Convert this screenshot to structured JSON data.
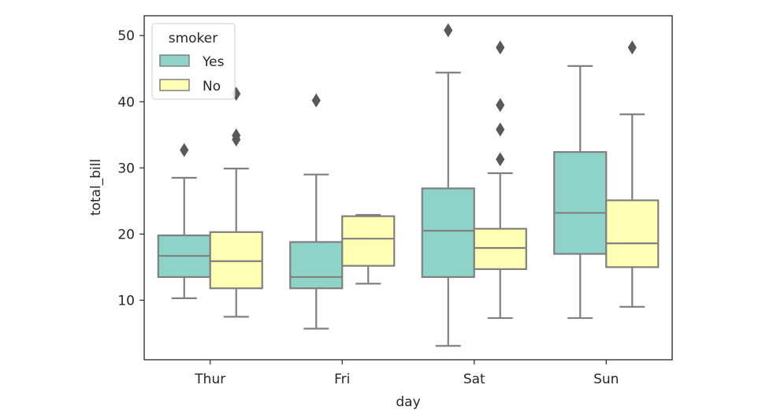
{
  "chart_data": {
    "type": "boxplot",
    "xlabel": "day",
    "ylabel": "total_bill",
    "categories": [
      "Thur",
      "Fri",
      "Sat",
      "Sun"
    ],
    "ylim": [
      1.0,
      53.0
    ],
    "yticks": [
      10,
      20,
      30,
      40,
      50
    ],
    "legend": {
      "title": "smoker",
      "position": "top-left"
    },
    "series": [
      {
        "name": "Yes",
        "color": "#8dd3c7",
        "boxes": [
          {
            "whislo": 10.3,
            "q1": 13.5,
            "med": 16.7,
            "q3": 19.8,
            "whishi": 28.5,
            "fliers": [
              32.7
            ]
          },
          {
            "whislo": 5.7,
            "q1": 11.8,
            "med": 13.5,
            "q3": 18.8,
            "whishi": 29.0,
            "fliers": [
              40.2
            ]
          },
          {
            "whislo": 3.1,
            "q1": 13.5,
            "med": 20.5,
            "q3": 26.9,
            "whishi": 44.4,
            "fliers": [
              50.8
            ]
          },
          {
            "whislo": 7.3,
            "q1": 17.0,
            "med": 23.2,
            "q3": 32.4,
            "whishi": 45.4,
            "fliers": []
          }
        ]
      },
      {
        "name": "No",
        "color": "#ffffb3",
        "boxes": [
          {
            "whislo": 7.5,
            "q1": 11.8,
            "med": 15.9,
            "q3": 20.3,
            "whishi": 29.9,
            "fliers": [
              34.3,
              34.9,
              41.2
            ]
          },
          {
            "whislo": 12.5,
            "q1": 15.2,
            "med": 19.3,
            "q3": 22.7,
            "whishi": 22.9,
            "fliers": []
          },
          {
            "whislo": 7.3,
            "q1": 14.7,
            "med": 17.9,
            "q3": 20.8,
            "whishi": 29.2,
            "fliers": [
              31.3,
              35.8,
              39.5,
              48.2
            ]
          },
          {
            "whislo": 9.0,
            "q1": 15.0,
            "med": 18.6,
            "q3": 25.1,
            "whishi": 38.1,
            "fliers": [
              48.2
            ]
          }
        ]
      }
    ]
  }
}
